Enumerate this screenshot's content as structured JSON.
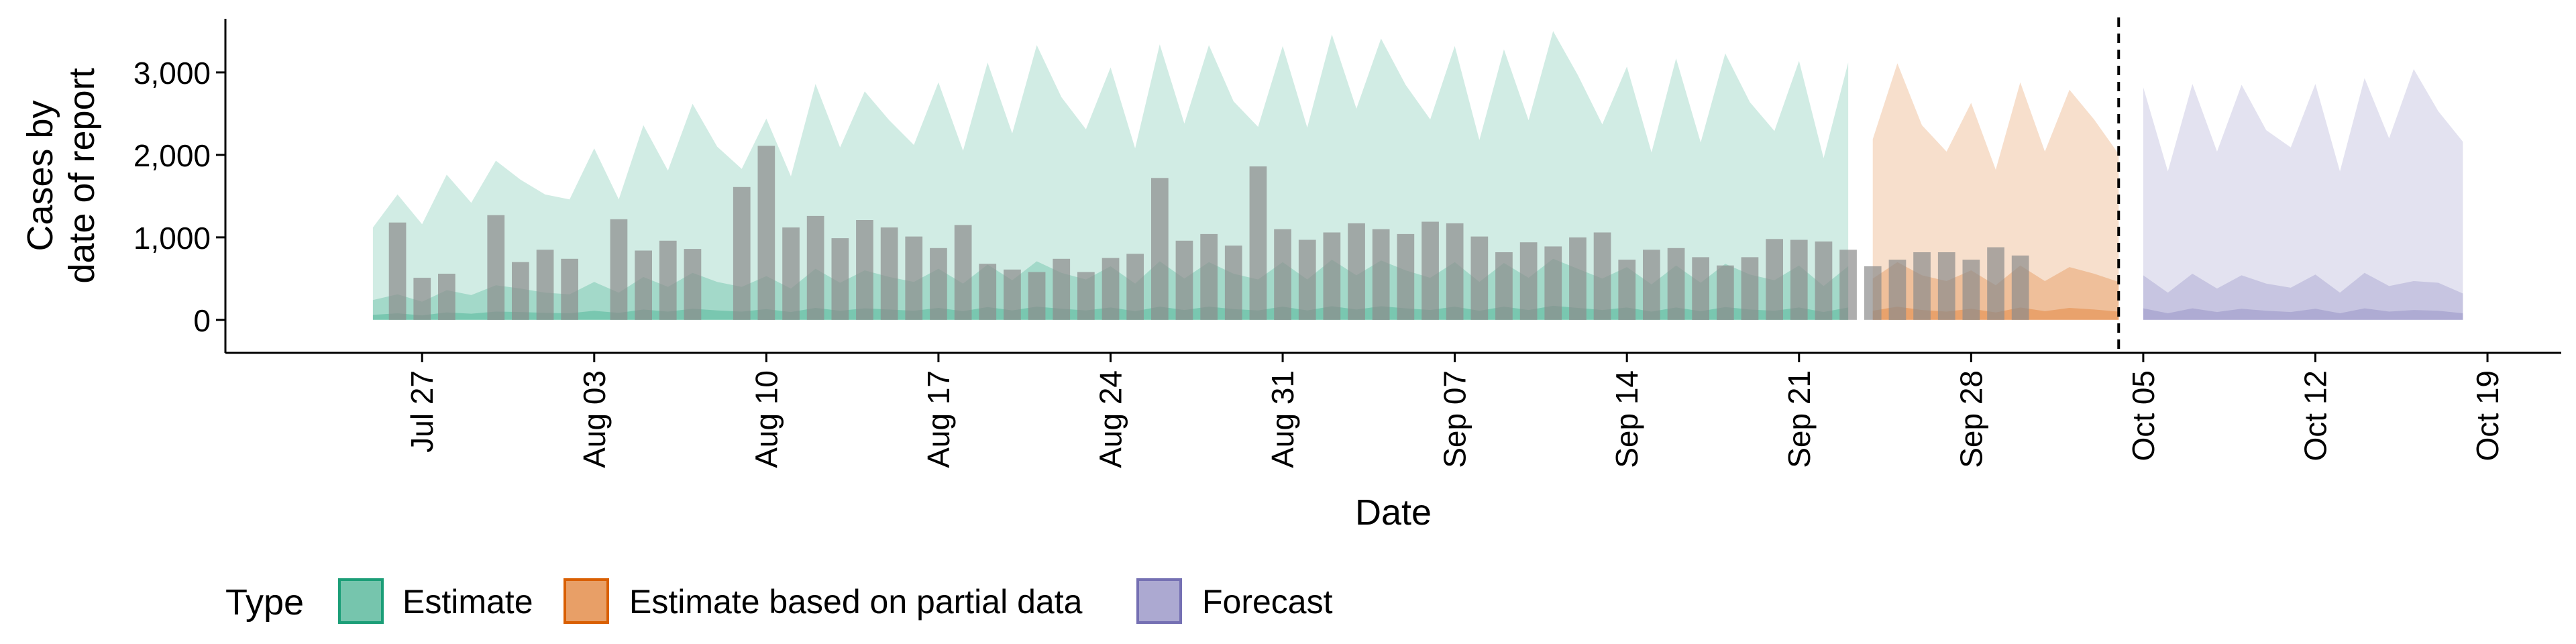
{
  "chart_data": {
    "type": "area",
    "xlabel": "Date",
    "ylabel_lines": [
      "Cases by",
      "date of report"
    ],
    "ylim": [
      -400,
      3650
    ],
    "xlim": [
      "2020-07-19",
      "2020-10-22"
    ],
    "x_ticks": [
      {
        "date": "2020-07-27",
        "label": "Jul 27"
      },
      {
        "date": "2020-08-03",
        "label": "Aug 03"
      },
      {
        "date": "2020-08-10",
        "label": "Aug 10"
      },
      {
        "date": "2020-08-17",
        "label": "Aug 17"
      },
      {
        "date": "2020-08-24",
        "label": "Aug 24"
      },
      {
        "date": "2020-08-31",
        "label": "Aug 31"
      },
      {
        "date": "2020-09-07",
        "label": "Sep 07"
      },
      {
        "date": "2020-09-14",
        "label": "Sep 14"
      },
      {
        "date": "2020-09-21",
        "label": "Sep 21"
      },
      {
        "date": "2020-09-28",
        "label": "Sep 28"
      },
      {
        "date": "2020-10-05",
        "label": "Oct 05"
      },
      {
        "date": "2020-10-12",
        "label": "Oct 12"
      },
      {
        "date": "2020-10-19",
        "label": "Oct 19"
      }
    ],
    "y_ticks": [
      {
        "value": 0,
        "label": "0"
      },
      {
        "value": 1000,
        "label": "1,000"
      },
      {
        "value": 2000,
        "label": "2,000"
      },
      {
        "value": 3000,
        "label": "3,000"
      }
    ],
    "forecast_date": "2020-10-04",
    "colors": {
      "Estimate": "#1b9e77",
      "Estimate based on partial data": "#d95f02",
      "Forecast": "#7570b3",
      "bars": "#8c8c8c"
    },
    "legend": {
      "title": "Type",
      "position": "bottom-left",
      "items": [
        "Estimate",
        "Estimate based on partial data",
        "Forecast"
      ]
    },
    "observed_cases": {
      "start": "2020-07-26",
      "values": [
        1180,
        510,
        560,
        null,
        1270,
        700,
        850,
        740,
        null,
        1220,
        840,
        960,
        860,
        null,
        1610,
        2110,
        1120,
        1260,
        990,
        1210,
        1120,
        1010,
        870,
        1150,
        680,
        610,
        580,
        740,
        580,
        750,
        800,
        1720,
        960,
        1040,
        900,
        1860,
        1100,
        970,
        1060,
        1170,
        1100,
        1040,
        1190,
        1170,
        1010,
        820,
        940,
        890,
        1000,
        1060,
        730,
        850,
        870,
        760,
        660,
        760,
        980,
        970,
        950,
        850,
        650,
        730,
        820,
        820,
        730,
        880,
        780
      ]
    },
    "series": [
      {
        "name": "Estimate",
        "start": "2020-07-25",
        "upper": [
          1120,
          1520,
          1160,
          1760,
          1420,
          1930,
          1700,
          1520,
          1460,
          2080,
          1460,
          2360,
          1810,
          2620,
          2100,
          1830,
          2440,
          1740,
          2860,
          2090,
          2770,
          2420,
          2120,
          2880,
          2050,
          3120,
          2260,
          3330,
          2700,
          2310,
          3060,
          2080,
          3340,
          2380,
          3330,
          2650,
          2340,
          3320,
          2330,
          3460,
          2560,
          3410,
          2850,
          2430,
          3320,
          2180,
          3280,
          2420,
          3500,
          2970,
          2370,
          3070,
          2030,
          3170,
          2150,
          3230,
          2640,
          2290,
          3140,
          1960,
          3120
        ],
        "mid": [
          240,
          310,
          220,
          360,
          300,
          420,
          380,
          330,
          310,
          460,
          330,
          520,
          400,
          570,
          460,
          400,
          530,
          380,
          620,
          450,
          600,
          520,
          460,
          620,
          440,
          670,
          480,
          710,
          570,
          490,
          650,
          440,
          710,
          500,
          700,
          560,
          490,
          700,
          490,
          730,
          540,
          720,
          600,
          510,
          700,
          460,
          690,
          510,
          740,
          620,
          500,
          640,
          430,
          660,
          450,
          680,
          550,
          480,
          660,
          410,
          650
        ],
        "lower": [
          60,
          80,
          55,
          90,
          75,
          100,
          95,
          85,
          80,
          110,
          85,
          125,
          100,
          135,
          115,
          100,
          130,
          95,
          145,
          110,
          140,
          125,
          110,
          145,
          105,
          155,
          115,
          160,
          135,
          115,
          150,
          105,
          160,
          120,
          160,
          130,
          115,
          160,
          115,
          165,
          125,
          165,
          140,
          120,
          160,
          110,
          160,
          120,
          170,
          145,
          120,
          150,
          100,
          150,
          105,
          155,
          125,
          110,
          150,
          95,
          150
        ]
      },
      {
        "name": "Estimate based on partial data",
        "start": "2020-09-24",
        "upper": [
          2190,
          3110,
          2360,
          2040,
          2630,
          1820,
          2880,
          2040,
          2790,
          2430,
          2010
        ],
        "mid": [
          500,
          700,
          540,
          470,
          600,
          420,
          660,
          470,
          640,
          560,
          460
        ],
        "lower": [
          110,
          160,
          120,
          100,
          135,
          90,
          150,
          105,
          145,
          125,
          100
        ]
      },
      {
        "name": "Forecast",
        "start": "2020-10-05",
        "upper": [
          2820,
          1800,
          2860,
          2040,
          2850,
          2300,
          2090,
          2860,
          1800,
          2930,
          2200,
          3040,
          2530,
          2160
        ],
        "mid": [
          540,
          330,
          560,
          380,
          540,
          440,
          390,
          550,
          330,
          570,
          410,
          470,
          450,
          320
        ],
        "lower": [
          140,
          80,
          140,
          95,
          135,
          110,
          95,
          135,
          80,
          140,
          100,
          120,
          110,
          80
        ]
      }
    ]
  }
}
